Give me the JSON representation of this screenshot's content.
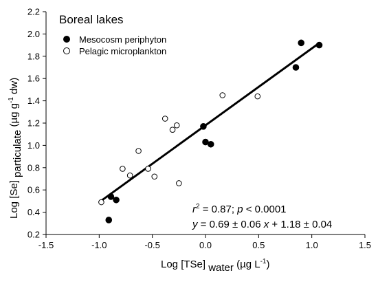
{
  "chart_data": {
    "type": "scatter",
    "title": "Boreal lakes",
    "xlabel": {
      "main": "Log [TSe]",
      "sub": "water",
      "unit_pre": "(µg L",
      "unit_sup": "-1",
      "unit_post": ")"
    },
    "ylabel": {
      "main": "Log [Se]",
      "sub": "particulate",
      "unit_pre": "(µg g",
      "unit_sup": "-1",
      "unit_post": " dw)"
    },
    "xlim": [
      -1.5,
      1.5
    ],
    "ylim": [
      0.2,
      2.2
    ],
    "xticks": [
      "-1.5",
      "-1.0",
      "-0.5",
      "0.0",
      "0.5",
      "1.0",
      "1.5"
    ],
    "yticks": [
      "0.2",
      "0.4",
      "0.6",
      "0.8",
      "1.0",
      "1.2",
      "1.4",
      "1.6",
      "1.8",
      "2.0",
      "2.2"
    ],
    "grid": false,
    "legend_position": "top-left",
    "series": [
      {
        "name": "Mesocosm periphyton",
        "marker": "filled-circle",
        "points": [
          {
            "x": -0.91,
            "y": 0.33
          },
          {
            "x": -0.89,
            "y": 0.54
          },
          {
            "x": -0.84,
            "y": 0.51
          },
          {
            "x": -0.02,
            "y": 1.17
          },
          {
            "x": 0.0,
            "y": 1.03
          },
          {
            "x": 0.05,
            "y": 1.01
          },
          {
            "x": 0.85,
            "y": 1.7
          },
          {
            "x": 0.9,
            "y": 1.92
          },
          {
            "x": 1.07,
            "y": 1.9
          }
        ]
      },
      {
        "name": "Pelagic microplankton",
        "marker": "open-circle",
        "points": [
          {
            "x": -0.98,
            "y": 0.49
          },
          {
            "x": -0.78,
            "y": 0.79
          },
          {
            "x": -0.71,
            "y": 0.73
          },
          {
            "x": -0.63,
            "y": 0.95
          },
          {
            "x": -0.54,
            "y": 0.79
          },
          {
            "x": -0.48,
            "y": 0.72
          },
          {
            "x": -0.38,
            "y": 1.24
          },
          {
            "x": -0.31,
            "y": 1.14
          },
          {
            "x": -0.27,
            "y": 1.18
          },
          {
            "x": -0.25,
            "y": 0.66
          },
          {
            "x": 0.16,
            "y": 1.45
          },
          {
            "x": 0.49,
            "y": 1.44
          }
        ]
      }
    ],
    "fit_line": {
      "x_start": -0.98,
      "x_end": 1.07,
      "slope": 0.69,
      "intercept": 1.18
    },
    "annotations": {
      "r2_prefix": "r",
      "r2_sup": "2",
      "r2_rest": " = 0.87; ",
      "p_var": "p",
      "p_rest": " < 0.0001",
      "eq_y": "y",
      "eq_mid": " = 0.69 ± 0.06 ",
      "eq_x": "x",
      "eq_rest": " + 1.18 ± 0.04"
    }
  }
}
